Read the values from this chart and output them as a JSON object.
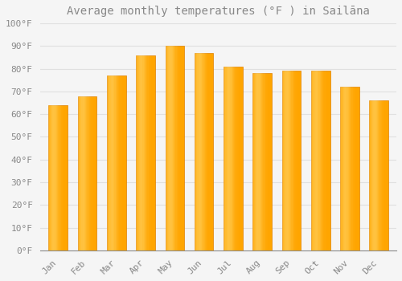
{
  "title": "Average monthly temperatures (°F ) in Sailāna",
  "months": [
    "Jan",
    "Feb",
    "Mar",
    "Apr",
    "May",
    "Jun",
    "Jul",
    "Aug",
    "Sep",
    "Oct",
    "Nov",
    "Dec"
  ],
  "values": [
    64,
    68,
    77,
    86,
    90,
    87,
    81,
    78,
    79,
    79,
    72,
    66
  ],
  "bar_color_main": "#FFA500",
  "bar_color_light": "#FFD060",
  "bar_color_dark": "#E08000",
  "background_color": "#F5F5F5",
  "grid_color": "#E0E0E0",
  "ylim": [
    0,
    100
  ],
  "yticks": [
    0,
    10,
    20,
    30,
    40,
    50,
    60,
    70,
    80,
    90,
    100
  ],
  "ytick_labels": [
    "0°F",
    "10°F",
    "20°F",
    "30°F",
    "40°F",
    "50°F",
    "60°F",
    "70°F",
    "80°F",
    "90°F",
    "100°F"
  ],
  "title_fontsize": 10,
  "tick_fontsize": 8,
  "font_color": "#888888"
}
